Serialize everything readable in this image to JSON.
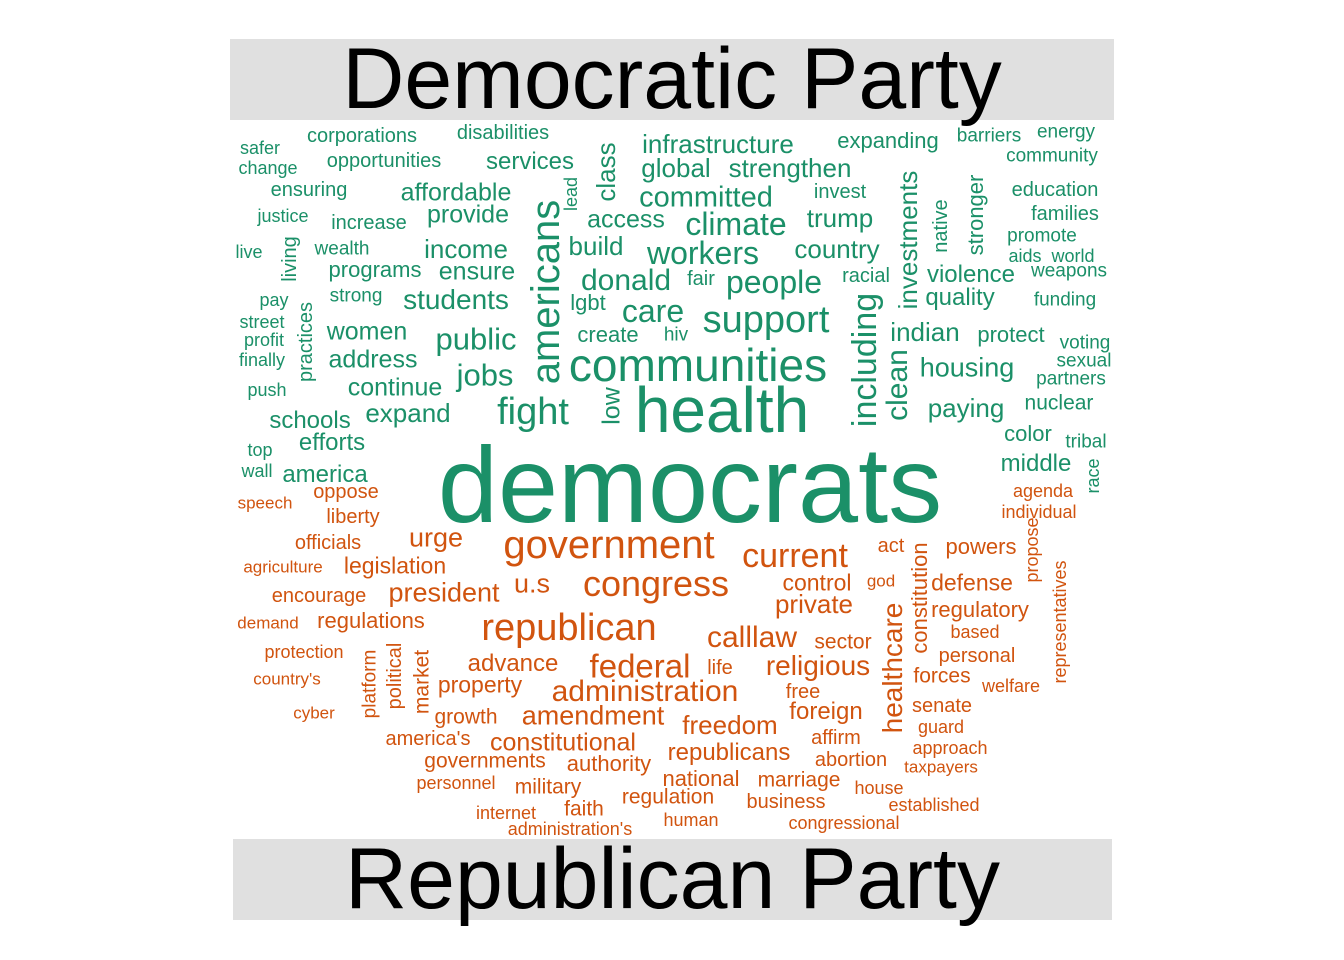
{
  "colors": {
    "democratic": "#1b9068",
    "republican": "#d1540f",
    "band": "#e0e0e0"
  },
  "titles": {
    "top": "Democratic Party",
    "bottom": "Republican Party"
  },
  "chart_data": {
    "type": "wordcloud",
    "groups": [
      {
        "name": "Democratic Party",
        "color": "#1b9068",
        "words": [
          {
            "text": "democrats",
            "weight": 100
          },
          {
            "text": "health",
            "weight": 58
          },
          {
            "text": "communities",
            "weight": 42
          },
          {
            "text": "americans",
            "weight": 38
          },
          {
            "text": "support",
            "weight": 35
          },
          {
            "text": "fight",
            "weight": 35
          },
          {
            "text": "including",
            "weight": 31
          },
          {
            "text": "workers",
            "weight": 30
          },
          {
            "text": "care",
            "weight": 30
          },
          {
            "text": "people",
            "weight": 30
          },
          {
            "text": "climate",
            "weight": 29
          },
          {
            "text": "committed",
            "weight": 29
          },
          {
            "text": "donald",
            "weight": 29
          },
          {
            "text": "public",
            "weight": 29
          },
          {
            "text": "jobs",
            "weight": 29
          },
          {
            "text": "clean",
            "weight": 28
          },
          {
            "text": "investments",
            "weight": 24
          },
          {
            "text": "strengthen",
            "weight": 24
          },
          {
            "text": "global",
            "weight": 24
          },
          {
            "text": "infrastructure",
            "weight": 24
          },
          {
            "text": "students",
            "weight": 24
          },
          {
            "text": "class",
            "weight": 24
          },
          {
            "text": "trump",
            "weight": 23
          },
          {
            "text": "country",
            "weight": 23
          },
          {
            "text": "build",
            "weight": 23
          },
          {
            "text": "income",
            "weight": 23
          },
          {
            "text": "affordable",
            "weight": 23
          },
          {
            "text": "housing",
            "weight": 23
          },
          {
            "text": "paying",
            "weight": 23
          },
          {
            "text": "expand",
            "weight": 23
          },
          {
            "text": "continue",
            "weight": 23
          },
          {
            "text": "women",
            "weight": 22
          },
          {
            "text": "address",
            "weight": 22
          },
          {
            "text": "indian",
            "weight": 23
          },
          {
            "text": "access",
            "weight": 22
          },
          {
            "text": "provide",
            "weight": 22
          },
          {
            "text": "ensure",
            "weight": 22
          },
          {
            "text": "services",
            "weight": 21
          },
          {
            "text": "violence",
            "weight": 21
          },
          {
            "text": "quality",
            "weight": 21
          },
          {
            "text": "middle",
            "weight": 21
          },
          {
            "text": "schools",
            "weight": 21
          },
          {
            "text": "efforts",
            "weight": 21
          },
          {
            "text": "america",
            "weight": 21
          },
          {
            "text": "low",
            "weight": 22
          },
          {
            "text": "stronger",
            "weight": 19
          },
          {
            "text": "expanding",
            "weight": 19
          },
          {
            "text": "color",
            "weight": 19
          },
          {
            "text": "protect",
            "weight": 19
          },
          {
            "text": "programs",
            "weight": 19
          },
          {
            "text": "lgbt",
            "weight": 19
          },
          {
            "text": "create",
            "weight": 19
          },
          {
            "text": "nuclear",
            "weight": 18
          },
          {
            "text": "corporations",
            "weight": 17
          },
          {
            "text": "disabilities",
            "weight": 17
          },
          {
            "text": "opportunities",
            "weight": 17
          },
          {
            "text": "invest",
            "weight": 17
          },
          {
            "text": "native",
            "weight": 17
          },
          {
            "text": "fair",
            "weight": 17
          },
          {
            "text": "ensuring",
            "weight": 17
          },
          {
            "text": "increase",
            "weight": 17
          },
          {
            "text": "education",
            "weight": 17
          },
          {
            "text": "families",
            "weight": 17
          },
          {
            "text": "practices",
            "weight": 17
          },
          {
            "text": "living",
            "weight": 17
          },
          {
            "text": "racial",
            "weight": 17
          },
          {
            "text": "strong",
            "weight": 16
          },
          {
            "text": "wealth",
            "weight": 16
          },
          {
            "text": "barriers",
            "weight": 16
          },
          {
            "text": "energy",
            "weight": 16
          },
          {
            "text": "community",
            "weight": 16
          },
          {
            "text": "promote",
            "weight": 16
          },
          {
            "text": "funding",
            "weight": 16
          },
          {
            "text": "weapons",
            "weight": 16
          },
          {
            "text": "hiv",
            "weight": 16
          },
          {
            "text": "tribal",
            "weight": 16
          },
          {
            "text": "partners",
            "weight": 16
          },
          {
            "text": "sexual",
            "weight": 16
          },
          {
            "text": "voting",
            "weight": 16
          },
          {
            "text": "lead",
            "weight": 15
          },
          {
            "text": "justice",
            "weight": 15
          },
          {
            "text": "change",
            "weight": 15
          },
          {
            "text": "street",
            "weight": 15
          },
          {
            "text": "profit",
            "weight": 15
          },
          {
            "text": "finally",
            "weight": 15
          },
          {
            "text": "push",
            "weight": 15
          },
          {
            "text": "race",
            "weight": 15
          },
          {
            "text": "aids",
            "weight": 15
          },
          {
            "text": "world",
            "weight": 15
          },
          {
            "text": "live",
            "weight": 15
          },
          {
            "text": "pay",
            "weight": 15
          },
          {
            "text": "top",
            "weight": 15
          },
          {
            "text": "wall",
            "weight": 15
          },
          {
            "text": "safer",
            "weight": 15
          }
        ]
      },
      {
        "name": "Republican Party",
        "color": "#d1540f",
        "words": [
          {
            "text": "government",
            "weight": 38
          },
          {
            "text": "republican",
            "weight": 38
          },
          {
            "text": "congress",
            "weight": 36
          },
          {
            "text": "current",
            "weight": 31
          },
          {
            "text": "federal",
            "weight": 31
          },
          {
            "text": "administration",
            "weight": 29
          },
          {
            "text": "calllaw",
            "weight": 29
          },
          {
            "text": "healthcare",
            "weight": 27
          },
          {
            "text": "religious",
            "weight": 26
          },
          {
            "text": "amendment",
            "weight": 26
          },
          {
            "text": "president",
            "weight": 25
          },
          {
            "text": "urge",
            "weight": 25
          },
          {
            "text": "u.s",
            "weight": 25
          },
          {
            "text": "private",
            "weight": 24
          },
          {
            "text": "freedom",
            "weight": 24
          },
          {
            "text": "constitutional",
            "weight": 24
          },
          {
            "text": "legislation",
            "weight": 22
          },
          {
            "text": "advance",
            "weight": 22
          },
          {
            "text": "republicans",
            "weight": 22
          },
          {
            "text": "constitution",
            "weight": 22
          },
          {
            "text": "foreign",
            "weight": 22
          },
          {
            "text": "control",
            "weight": 21
          },
          {
            "text": "defense",
            "weight": 21
          },
          {
            "text": "property",
            "weight": 21
          },
          {
            "text": "regulatory",
            "weight": 20
          },
          {
            "text": "regulations",
            "weight": 20
          },
          {
            "text": "national",
            "weight": 20
          },
          {
            "text": "powers",
            "weight": 20
          },
          {
            "text": "sector",
            "weight": 20
          },
          {
            "text": "market",
            "weight": 20
          },
          {
            "text": "authority",
            "weight": 20
          },
          {
            "text": "governments",
            "weight": 20
          },
          {
            "text": "regulation",
            "weight": 20
          },
          {
            "text": "marriage",
            "weight": 19
          },
          {
            "text": "forces",
            "weight": 19
          },
          {
            "text": "military",
            "weight": 19
          },
          {
            "text": "political",
            "weight": 19
          },
          {
            "text": "abortion",
            "weight": 19
          },
          {
            "text": "growth",
            "weight": 19
          },
          {
            "text": "faith",
            "weight": 19
          },
          {
            "text": "affirm",
            "weight": 18
          },
          {
            "text": "liberty",
            "weight": 18
          },
          {
            "text": "officials",
            "weight": 18
          },
          {
            "text": "oppose",
            "weight": 18
          },
          {
            "text": "act",
            "weight": 18
          },
          {
            "text": "business",
            "weight": 18
          },
          {
            "text": "america's",
            "weight": 18
          },
          {
            "text": "encourage",
            "weight": 18
          },
          {
            "text": "personal",
            "weight": 18
          },
          {
            "text": "platform",
            "weight": 18
          },
          {
            "text": "free",
            "weight": 18
          },
          {
            "text": "senate",
            "weight": 18
          },
          {
            "text": "life",
            "weight": 18
          },
          {
            "text": "propose",
            "weight": 17
          },
          {
            "text": "representatives",
            "weight": 17
          },
          {
            "text": "agenda",
            "weight": 17
          },
          {
            "text": "individual",
            "weight": 17
          },
          {
            "text": "based",
            "weight": 17
          },
          {
            "text": "welfare",
            "weight": 17
          },
          {
            "text": "guard",
            "weight": 17
          },
          {
            "text": "approach",
            "weight": 17
          },
          {
            "text": "house",
            "weight": 17
          },
          {
            "text": "established",
            "weight": 17
          },
          {
            "text": "congressional",
            "weight": 17
          },
          {
            "text": "human",
            "weight": 17
          },
          {
            "text": "administration's",
            "weight": 17
          },
          {
            "text": "internet",
            "weight": 17
          },
          {
            "text": "personnel",
            "weight": 17
          },
          {
            "text": "protection",
            "weight": 17
          },
          {
            "text": "country's",
            "weight": 17
          },
          {
            "text": "cyber",
            "weight": 16
          },
          {
            "text": "speech",
            "weight": 16
          },
          {
            "text": "agriculture",
            "weight": 16
          },
          {
            "text": "demand",
            "weight": 16
          },
          {
            "text": "god",
            "weight": 16
          },
          {
            "text": "taxpayers",
            "weight": 16
          }
        ]
      }
    ]
  }
}
